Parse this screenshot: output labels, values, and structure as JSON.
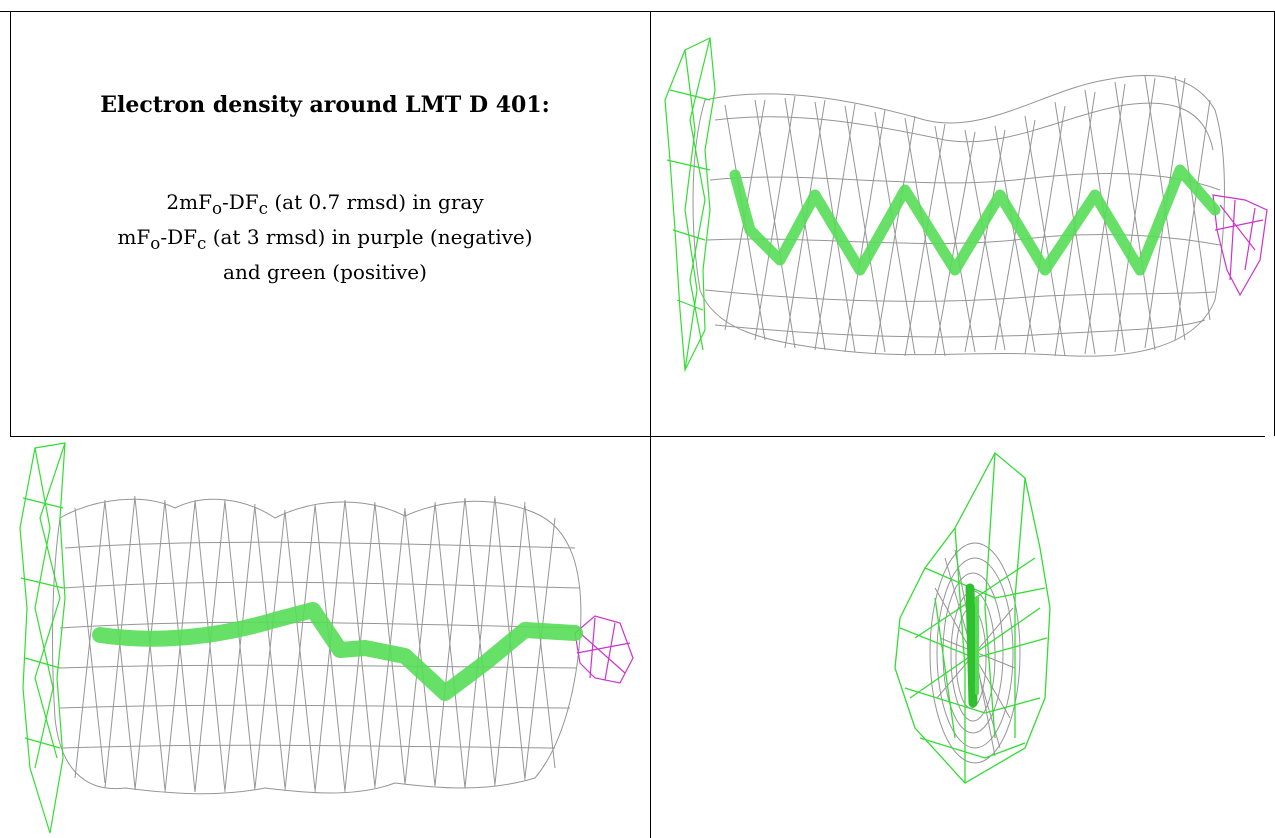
{
  "caption": {
    "title": "Electron density around LMT D 401:",
    "line1_prefix": "2mF",
    "line1_sub_o": "o",
    "line1_mid": "-DF",
    "line1_sub_c": "c",
    "line1_suffix": " (at 0.7 rmsd) in gray",
    "line2_prefix": "mF",
    "line2_sub_o": "o",
    "line2_mid": "-DF",
    "line2_sub_c": "c",
    "line2_suffix": " (at 3 rmsd) in purple (negative)",
    "line3": "and green (positive)"
  },
  "colors": {
    "map_2fofc": "#8a8a8a",
    "map_fofc_negative": "#cc33cc",
    "map_fofc_positive": "#33dd33",
    "ligand": "#55dd55"
  },
  "panels": [
    {
      "name": "view-top-right",
      "icon": "density-mesh-side-view"
    },
    {
      "name": "view-bottom-left",
      "icon": "density-mesh-front-view"
    },
    {
      "name": "view-bottom-right",
      "icon": "density-mesh-end-view"
    }
  ]
}
